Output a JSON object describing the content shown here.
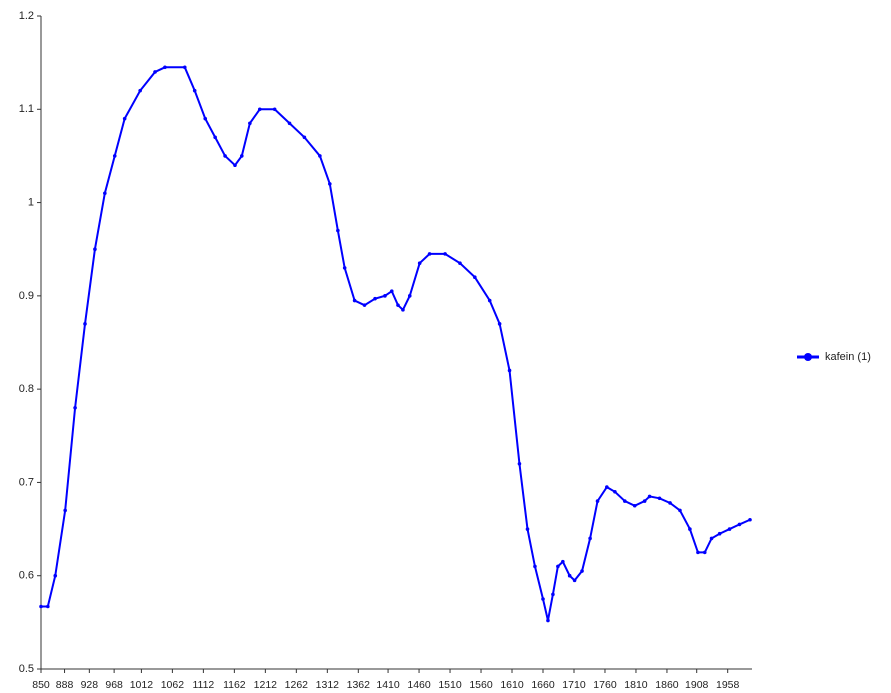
{
  "chart_data": {
    "type": "line",
    "x": [
      850,
      861,
      873,
      889,
      905,
      921,
      937,
      953,
      969,
      985,
      1010,
      1034,
      1050,
      1082,
      1098,
      1115,
      1131,
      1147,
      1163,
      1174,
      1187,
      1203,
      1227,
      1251,
      1275,
      1300,
      1316,
      1329,
      1340,
      1356,
      1372,
      1389,
      1405,
      1416,
      1426,
      1434,
      1445,
      1461,
      1477,
      1502,
      1526,
      1550,
      1574,
      1590,
      1606,
      1622,
      1635,
      1647,
      1660,
      1668,
      1676,
      1684,
      1692,
      1703,
      1711,
      1723,
      1736,
      1748,
      1763,
      1776,
      1792,
      1808,
      1824,
      1832,
      1848,
      1865,
      1881,
      1897,
      1910,
      1921,
      1932,
      1945,
      1961,
      1977,
      1994
    ],
    "series": [
      {
        "name": "kafein (1)",
        "color": "#0000ff",
        "values": [
          0.567,
          0.567,
          0.6,
          0.67,
          0.78,
          0.87,
          0.95,
          1.01,
          1.05,
          1.09,
          1.12,
          1.14,
          1.145,
          1.145,
          1.12,
          1.09,
          1.07,
          1.05,
          1.04,
          1.05,
          1.085,
          1.1,
          1.1,
          1.085,
          1.07,
          1.05,
          1.02,
          0.97,
          0.93,
          0.895,
          0.89,
          0.897,
          0.9,
          0.905,
          0.89,
          0.885,
          0.9,
          0.935,
          0.945,
          0.945,
          0.935,
          0.92,
          0.895,
          0.87,
          0.82,
          0.72,
          0.65,
          0.61,
          0.575,
          0.552,
          0.58,
          0.61,
          0.615,
          0.6,
          0.595,
          0.605,
          0.64,
          0.68,
          0.695,
          0.69,
          0.68,
          0.675,
          0.68,
          0.685,
          0.683,
          0.678,
          0.67,
          0.65,
          0.625,
          0.625,
          0.64,
          0.645,
          0.65,
          0.655,
          0.66
        ]
      }
    ],
    "xlim": [
      850,
      1994
    ],
    "xticks": [
      850,
      888,
      928,
      968,
      1012,
      1062,
      1112,
      1162,
      1212,
      1262,
      1312,
      1362,
      1410,
      1460,
      1510,
      1560,
      1610,
      1660,
      1710,
      1760,
      1810,
      1860,
      1908,
      1958
    ],
    "ylim": [
      0.5,
      1.2
    ],
    "yticks": [
      0.5,
      0.6,
      0.7,
      0.8,
      0.9,
      1,
      1.1,
      1.2
    ],
    "legend": "right"
  }
}
